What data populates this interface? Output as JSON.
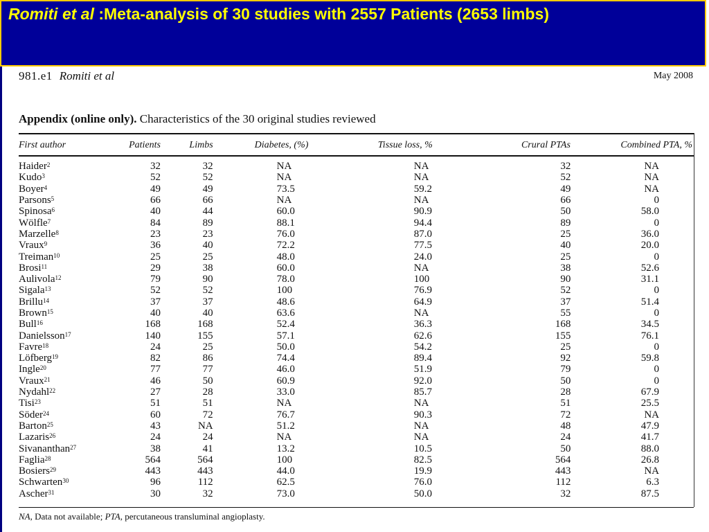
{
  "title": {
    "author": "Romiti et al",
    "rest": " :Meta-analysis of 30 studies with 2557 Patients (2653 limbs)"
  },
  "paper": {
    "page": "981.e1",
    "author": "Romiti et al",
    "date": "May 2008",
    "caption_lead": "Appendix (online only).",
    "caption_rest": " Characteristics of the 30 original studies reviewed"
  },
  "table": {
    "headers": [
      "First author",
      "Patients",
      "Limbs",
      "Diabetes, (%)",
      "Tissue loss, %",
      "Crural PTAs",
      "Combined PTA, %"
    ],
    "rows": [
      {
        "author": "Haider",
        "ref": "2",
        "patients": "32",
        "limbs": "32",
        "diabetes": "NA",
        "tissue_loss": "NA",
        "crural": "32",
        "combined": "NA"
      },
      {
        "author": "Kudo",
        "ref": "3",
        "patients": "52",
        "limbs": "52",
        "diabetes": "NA",
        "tissue_loss": "NA",
        "crural": "52",
        "combined": "NA"
      },
      {
        "author": "Boyer",
        "ref": "4",
        "patients": "49",
        "limbs": "49",
        "diabetes": "73.5",
        "tissue_loss": "59.2",
        "crural": "49",
        "combined": "NA"
      },
      {
        "author": "Parsons",
        "ref": "5",
        "patients": "66",
        "limbs": "66",
        "diabetes": "NA",
        "tissue_loss": "NA",
        "crural": "66",
        "combined": "0"
      },
      {
        "author": "Spinosa",
        "ref": "6",
        "patients": "40",
        "limbs": "44",
        "diabetes": "60.0",
        "tissue_loss": "90.9",
        "crural": "50",
        "combined": "58.0"
      },
      {
        "author": "Wölfle",
        "ref": "7",
        "patients": "84",
        "limbs": "89",
        "diabetes": "88.1",
        "tissue_loss": "94.4",
        "crural": "89",
        "combined": "0"
      },
      {
        "author": "Marzelle",
        "ref": "8",
        "patients": "23",
        "limbs": "23",
        "diabetes": "76.0",
        "tissue_loss": "87.0",
        "crural": "25",
        "combined": "36.0"
      },
      {
        "author": "Vraux",
        "ref": "9",
        "patients": "36",
        "limbs": "40",
        "diabetes": "72.2",
        "tissue_loss": "77.5",
        "crural": "40",
        "combined": "20.0"
      },
      {
        "author": "Treiman",
        "ref": "10",
        "patients": "25",
        "limbs": "25",
        "diabetes": "48.0",
        "tissue_loss": "24.0",
        "crural": "25",
        "combined": "0"
      },
      {
        "author": "Brosi",
        "ref": "11",
        "patients": "29",
        "limbs": "38",
        "diabetes": "60.0",
        "tissue_loss": "NA",
        "crural": "38",
        "combined": "52.6"
      },
      {
        "author": "Aulivola",
        "ref": "12",
        "patients": "79",
        "limbs": "90",
        "diabetes": "78.0",
        "tissue_loss": "100",
        "crural": "90",
        "combined": "31.1"
      },
      {
        "author": "Sigala",
        "ref": "13",
        "patients": "52",
        "limbs": "52",
        "diabetes": "100",
        "tissue_loss": "76.9",
        "crural": "52",
        "combined": "0"
      },
      {
        "author": "Brillu",
        "ref": "14",
        "patients": "37",
        "limbs": "37",
        "diabetes": "48.6",
        "tissue_loss": "64.9",
        "crural": "37",
        "combined": "51.4"
      },
      {
        "author": "Brown",
        "ref": "15",
        "patients": "40",
        "limbs": "40",
        "diabetes": "63.6",
        "tissue_loss": "NA",
        "crural": "55",
        "combined": "0"
      },
      {
        "author": "Bull",
        "ref": "16",
        "patients": "168",
        "limbs": "168",
        "diabetes": "52.4",
        "tissue_loss": "36.3",
        "crural": "168",
        "combined": "34.5"
      },
      {
        "author": "Danielsson",
        "ref": "17",
        "patients": "140",
        "limbs": "155",
        "diabetes": "57.1",
        "tissue_loss": "62.6",
        "crural": "155",
        "combined": "76.1"
      },
      {
        "author": "Favre",
        "ref": "18",
        "patients": "24",
        "limbs": "25",
        "diabetes": "50.0",
        "tissue_loss": "54.2",
        "crural": "25",
        "combined": "0"
      },
      {
        "author": "Löfberg",
        "ref": "19",
        "patients": "82",
        "limbs": "86",
        "diabetes": "74.4",
        "tissue_loss": "89.4",
        "crural": "92",
        "combined": "59.8"
      },
      {
        "author": "Ingle",
        "ref": "20",
        "patients": "77",
        "limbs": "77",
        "diabetes": "46.0",
        "tissue_loss": "51.9",
        "crural": "79",
        "combined": "0"
      },
      {
        "author": "Vraux",
        "ref": "21",
        "patients": "46",
        "limbs": "50",
        "diabetes": "60.9",
        "tissue_loss": "92.0",
        "crural": "50",
        "combined": "0"
      },
      {
        "author": "Nydahl",
        "ref": "22",
        "patients": "27",
        "limbs": "28",
        "diabetes": "33.0",
        "tissue_loss": "85.7",
        "crural": "28",
        "combined": "67.9"
      },
      {
        "author": "Tisi",
        "ref": "23",
        "patients": "51",
        "limbs": "51",
        "diabetes": "NA",
        "tissue_loss": "NA",
        "crural": "51",
        "combined": "25.5"
      },
      {
        "author": "Söder",
        "ref": "24",
        "patients": "60",
        "limbs": "72",
        "diabetes": "76.7",
        "tissue_loss": "90.3",
        "crural": "72",
        "combined": "NA"
      },
      {
        "author": "Barton",
        "ref": "25",
        "patients": "43",
        "limbs": "NA",
        "diabetes": "51.2",
        "tissue_loss": "NA",
        "crural": "48",
        "combined": "47.9"
      },
      {
        "author": "Lazaris",
        "ref": "26",
        "patients": "24",
        "limbs": "24",
        "diabetes": "NA",
        "tissue_loss": "NA",
        "crural": "24",
        "combined": "41.7"
      },
      {
        "author": "Sivananthan",
        "ref": "27",
        "patients": "38",
        "limbs": "41",
        "diabetes": "13.2",
        "tissue_loss": "10.5",
        "crural": "50",
        "combined": "88.0"
      },
      {
        "author": "Faglia",
        "ref": "28",
        "patients": "564",
        "limbs": "564",
        "diabetes": "100",
        "tissue_loss": "82.5",
        "crural": "564",
        "combined": "26.8"
      },
      {
        "author": "Bosiers",
        "ref": "29",
        "patients": "443",
        "limbs": "443",
        "diabetes": "44.0",
        "tissue_loss": "19.9",
        "crural": "443",
        "combined": "NA"
      },
      {
        "author": "Schwarten",
        "ref": "30",
        "patients": "96",
        "limbs": "112",
        "diabetes": "62.5",
        "tissue_loss": "76.0",
        "crural": "112",
        "combined": "6.3"
      },
      {
        "author": "Ascher",
        "ref": "31",
        "patients": "30",
        "limbs": "32",
        "diabetes": "73.0",
        "tissue_loss": "50.0",
        "crural": "32",
        "combined": "87.5"
      }
    ]
  },
  "footnote": {
    "na_abbr": "NA",
    "na_text": ", Data not available; ",
    "pta_abbr": "PTA",
    "pta_text": ", percutaneous transluminal angioplasty."
  }
}
